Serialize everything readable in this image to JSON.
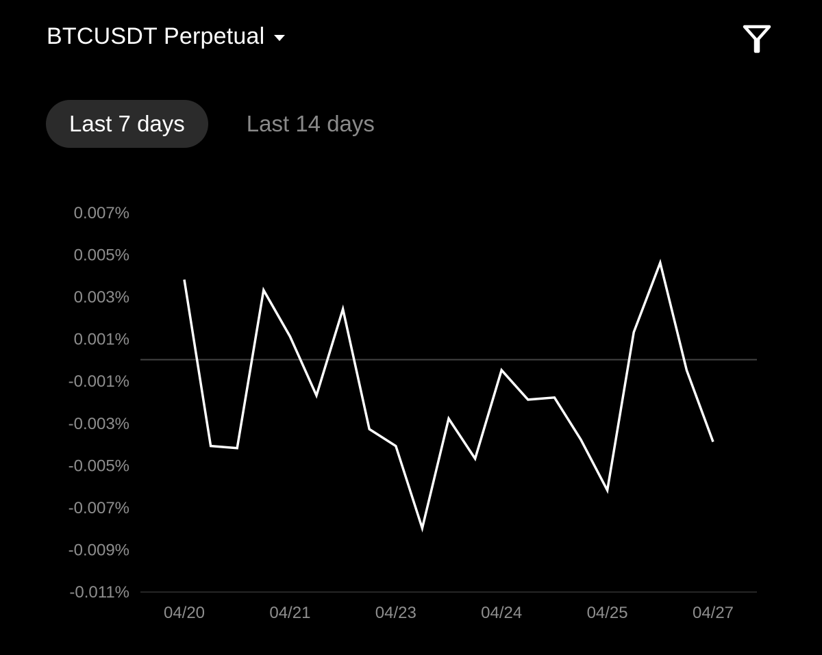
{
  "header": {
    "symbol": "BTCUSDT Perpetual",
    "dropdown_icon": "caret-down-icon",
    "filter_icon": "funnel-filter-icon"
  },
  "tabs": [
    {
      "label": "Last 7 days",
      "active": true
    },
    {
      "label": "Last 14 days",
      "active": false
    }
  ],
  "colors": {
    "background": "#000000",
    "line": "#ffffff",
    "tick_text": "#8e8e8e",
    "active_tab_bg": "#2b2b2b",
    "inactive_tab_text": "#8a8a8a",
    "zero_line": "#444444"
  },
  "chart_data": {
    "type": "line",
    "title": "",
    "xlabel": "",
    "ylabel": "",
    "ylim": [
      -0.011,
      0.007
    ],
    "y_ticks": [
      "0.007%",
      "0.005%",
      "0.003%",
      "0.001%",
      "-0.001%",
      "-0.003%",
      "-0.005%",
      "-0.007%",
      "-0.009%",
      "-0.011%"
    ],
    "y_tick_values": [
      0.007,
      0.005,
      0.003,
      0.001,
      -0.001,
      -0.003,
      -0.005,
      -0.007,
      -0.009,
      -0.011
    ],
    "x_tick_labels": [
      "04/20",
      "04/21",
      "04/23",
      "04/24",
      "04/25",
      "04/27"
    ],
    "x_tick_positions": [
      0,
      4,
      8,
      12,
      16,
      20
    ],
    "reference_line": 0,
    "grid": false,
    "series": [
      {
        "values": [
          0.0038,
          -0.0041,
          -0.0042,
          0.0033,
          0.0011,
          -0.0017,
          0.0024,
          -0.0033,
          -0.0041,
          -0.008,
          -0.0028,
          -0.0047,
          -0.0005,
          -0.0019,
          -0.0018,
          -0.0038,
          -0.0062,
          0.0013,
          0.0046,
          -0.0005,
          -0.0039
        ]
      }
    ]
  }
}
